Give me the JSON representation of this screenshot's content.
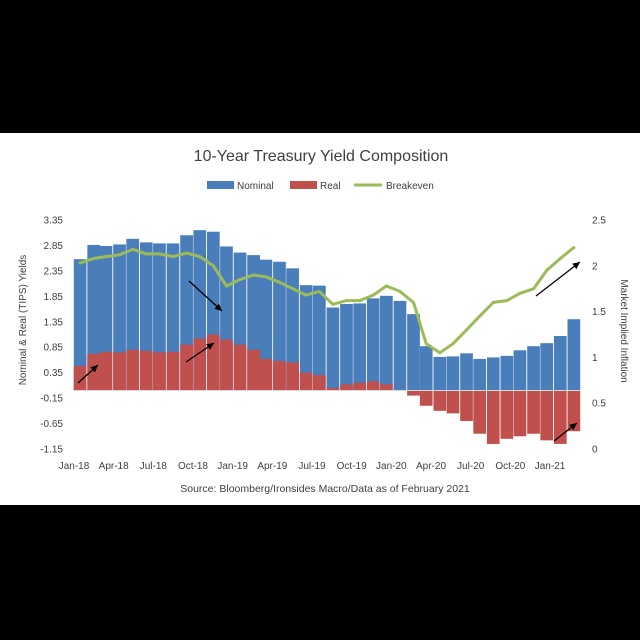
{
  "chart_data": {
    "type": "bar",
    "title": "10-Year Treasury Yield Composition",
    "source": "Source: Bloomberg/Ironsides Macro/Data as of February 2021",
    "ylabel": "Nominal  & Real (TIPS) Yields",
    "y2label": "Market Implied Inflation",
    "ylim": [
      -1.15,
      3.35
    ],
    "y_ticks": [
      "3.35",
      "2.85",
      "2.35",
      "1.85",
      "1.35",
      "0.85",
      "0.35",
      "-0.15",
      "-0.65",
      "-1.15"
    ],
    "y2lim": [
      0,
      2.5
    ],
    "y2_ticks": [
      "2.5",
      "2",
      "1.5",
      "1",
      "0.5",
      "0"
    ],
    "x_ticks": [
      "Jan-18",
      "Apr-18",
      "Jul-18",
      "Oct-18",
      "Jan-19",
      "Apr-19",
      "Jul-19",
      "Oct-19",
      "Jan-20",
      "Apr-20",
      "Jul-20",
      "Oct-20",
      "Jan-21"
    ],
    "legend_position": "top",
    "colors": {
      "nominal": "#4a7ebb",
      "real": "#c0504d",
      "breakeven": "#9bbb59",
      "arrow": "#000000"
    },
    "series": [
      {
        "name": "Nominal",
        "kind": "bar",
        "axis": "left",
        "x": [
          "2018-01",
          "2018-02",
          "2018-03",
          "2018-04",
          "2018-05",
          "2018-06",
          "2018-07",
          "2018-08",
          "2018-09",
          "2018-10",
          "2018-11",
          "2018-12",
          "2019-01",
          "2019-02",
          "2019-03",
          "2019-04",
          "2019-05",
          "2019-06",
          "2019-07",
          "2019-08",
          "2019-09",
          "2019-10",
          "2019-11",
          "2019-12",
          "2020-01",
          "2020-02",
          "2020-03",
          "2020-04",
          "2020-05",
          "2020-06",
          "2020-07",
          "2020-08",
          "2020-09",
          "2020-10",
          "2020-11",
          "2020-12",
          "2021-01",
          "2021-02"
        ],
        "values": [
          2.58,
          2.86,
          2.84,
          2.87,
          2.98,
          2.91,
          2.89,
          2.89,
          3.05,
          3.15,
          3.12,
          2.83,
          2.71,
          2.66,
          2.57,
          2.53,
          2.4,
          2.07,
          2.06,
          1.63,
          1.7,
          1.71,
          1.81,
          1.86,
          1.76,
          1.5,
          0.87,
          0.66,
          0.67,
          0.73,
          0.62,
          0.65,
          0.68,
          0.79,
          0.87,
          0.93,
          1.07,
          1.4
        ]
      },
      {
        "name": "Real",
        "kind": "bar",
        "axis": "left",
        "x": [
          "2018-01",
          "2018-02",
          "2018-03",
          "2018-04",
          "2018-05",
          "2018-06",
          "2018-07",
          "2018-08",
          "2018-09",
          "2018-10",
          "2018-11",
          "2018-12",
          "2019-01",
          "2019-02",
          "2019-03",
          "2019-04",
          "2019-05",
          "2019-06",
          "2019-07",
          "2019-08",
          "2019-09",
          "2019-10",
          "2019-11",
          "2019-12",
          "2020-01",
          "2020-02",
          "2020-03",
          "2020-04",
          "2020-05",
          "2020-06",
          "2020-07",
          "2020-08",
          "2020-09",
          "2020-10",
          "2020-11",
          "2020-12",
          "2021-01",
          "2021-02"
        ],
        "values": [
          0.48,
          0.72,
          0.76,
          0.75,
          0.8,
          0.78,
          0.75,
          0.76,
          0.9,
          1.02,
          1.1,
          1.0,
          0.9,
          0.8,
          0.62,
          0.58,
          0.55,
          0.35,
          0.3,
          0.05,
          0.12,
          0.15,
          0.18,
          0.12,
          0.0,
          -0.1,
          -0.3,
          -0.4,
          -0.45,
          -0.6,
          -0.85,
          -1.05,
          -0.95,
          -0.9,
          -0.85,
          -0.98,
          -1.05,
          -0.8
        ]
      },
      {
        "name": "Breakeven",
        "kind": "line",
        "axis": "right",
        "x": [
          "2018-01",
          "2018-02",
          "2018-03",
          "2018-04",
          "2018-05",
          "2018-06",
          "2018-07",
          "2018-08",
          "2018-09",
          "2018-10",
          "2018-11",
          "2018-12",
          "2019-01",
          "2019-02",
          "2019-03",
          "2019-04",
          "2019-05",
          "2019-06",
          "2019-07",
          "2019-08",
          "2019-09",
          "2019-10",
          "2019-11",
          "2019-12",
          "2020-01",
          "2020-02",
          "2020-03",
          "2020-04",
          "2020-05",
          "2020-06",
          "2020-07",
          "2020-08",
          "2020-09",
          "2020-10",
          "2020-11",
          "2020-12",
          "2021-01",
          "2021-02"
        ],
        "values": [
          2.03,
          2.08,
          2.1,
          2.12,
          2.18,
          2.13,
          2.13,
          2.1,
          2.14,
          2.1,
          2.0,
          1.78,
          1.85,
          1.9,
          1.88,
          1.82,
          1.75,
          1.68,
          1.72,
          1.58,
          1.62,
          1.62,
          1.68,
          1.78,
          1.72,
          1.6,
          1.15,
          1.05,
          1.15,
          1.3,
          1.45,
          1.6,
          1.62,
          1.7,
          1.75,
          1.95,
          2.08,
          2.2
        ]
      }
    ],
    "annotations": [
      {
        "kind": "arrow",
        "direction": "up-right",
        "near": "Jan-18"
      },
      {
        "kind": "arrow",
        "direction": "up-right",
        "near": "Oct-18"
      },
      {
        "kind": "arrow",
        "direction": "down-right",
        "near": "Jan-19"
      },
      {
        "kind": "arrow",
        "direction": "up-right",
        "near": "Jan-21"
      },
      {
        "kind": "arrow",
        "direction": "up-right",
        "near": "Feb-21"
      }
    ]
  }
}
